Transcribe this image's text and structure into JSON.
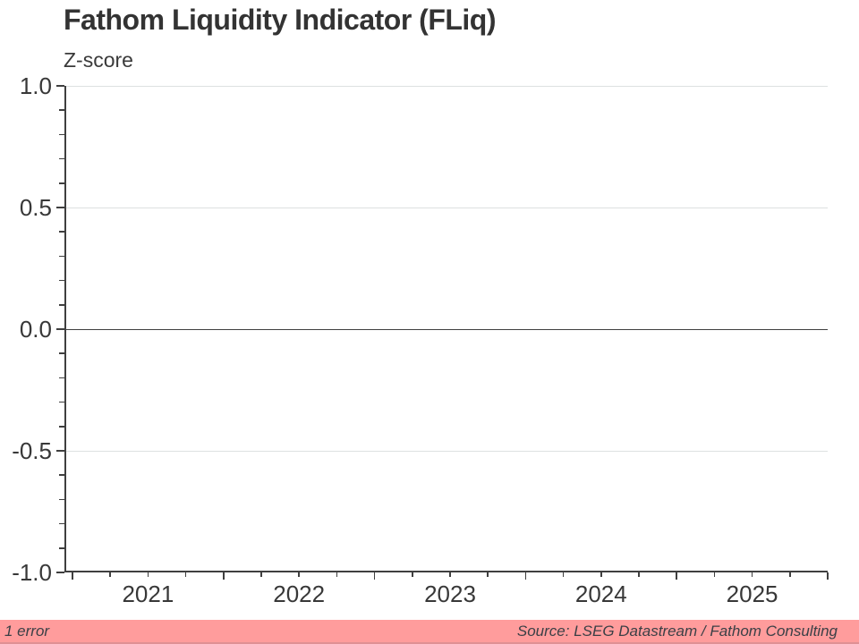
{
  "header": {
    "title": "Fathom Liquidity Indicator (FLiq)",
    "y_axis_unit": "Z-score"
  },
  "chart_data": {
    "type": "line",
    "title": "Fathom Liquidity Indicator (FLiq)",
    "xlabel": "",
    "ylabel": "Z-score",
    "ylim": [
      -1.0,
      1.0
    ],
    "yticks": [
      {
        "value": 1.0,
        "label": "1.0"
      },
      {
        "value": 0.5,
        "label": "0.5"
      },
      {
        "value": 0.0,
        "label": "0.0"
      },
      {
        "value": -0.5,
        "label": "-0.5"
      },
      {
        "value": -1.0,
        "label": "-1.0"
      }
    ],
    "y_minor_tick_step": 0.1,
    "x_year_labels": [
      "2021",
      "2022",
      "2023",
      "2024",
      "2025"
    ],
    "x_minor_ticks_per_year": 4,
    "grid": "horizontal-only",
    "legend": "none",
    "series": []
  },
  "footer": {
    "error_label": "1 error",
    "source_label": "Source: LSEG Datastream / Fathom Consulting"
  },
  "colors": {
    "footer_bar": "#ff9c9c",
    "axis": "#3f3f3f",
    "gridline": "#dde1e1",
    "zero_line": "#3f3f3f",
    "title_text": "#333333",
    "footer_text": "#3b4046"
  }
}
